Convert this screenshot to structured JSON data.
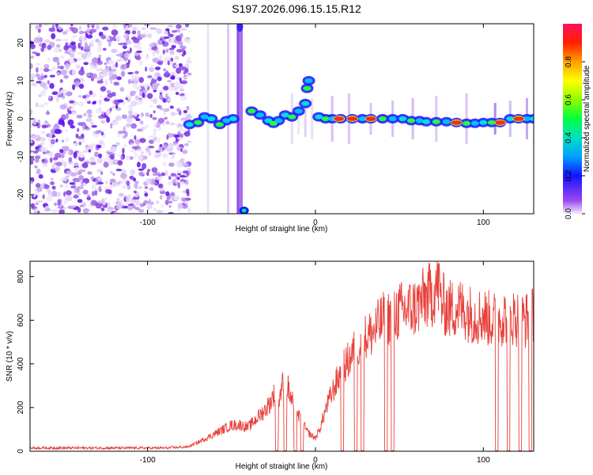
{
  "title": "S197.2026.096.15.15.R12",
  "chart_data": [
    {
      "type": "heatmap",
      "name": "spectrogram",
      "xlabel": "Height of straight line (km)",
      "ylabel": "Frequency (Hz)",
      "xlim": [
        -170,
        130
      ],
      "ylim": [
        -25,
        25
      ],
      "xticks": [
        -100,
        0,
        100
      ],
      "xtick_labels": [
        "-100",
        "0",
        "100"
      ],
      "yticks": [
        -20,
        -10,
        0,
        10,
        20
      ],
      "ytick_labels": [
        "-20",
        "-10",
        "0",
        "10",
        "20"
      ],
      "noise_region": [
        -170,
        -75
      ],
      "signal_track": [
        {
          "x": -75,
          "y": -1.5
        },
        {
          "x": -70,
          "y": -1
        },
        {
          "x": -66,
          "y": 0.5
        },
        {
          "x": -62,
          "y": 0
        },
        {
          "x": -57,
          "y": -1.5
        },
        {
          "x": -53,
          "y": -0.5
        },
        {
          "x": -49,
          "y": 0
        },
        {
          "x": -38,
          "y": 2
        },
        {
          "x": -33,
          "y": 1
        },
        {
          "x": -28,
          "y": -0.5
        },
        {
          "x": -25,
          "y": -1.2
        },
        {
          "x": -22,
          "y": -0.5
        },
        {
          "x": -18,
          "y": 1
        },
        {
          "x": -14,
          "y": 0.5
        },
        {
          "x": -10,
          "y": 2
        },
        {
          "x": -6,
          "y": 4
        },
        {
          "x": -5,
          "y": 8
        },
        {
          "x": -4,
          "y": 10
        },
        {
          "x": 2,
          "y": 0.5
        },
        {
          "x": 6,
          "y": 0
        },
        {
          "x": 10,
          "y": 0
        },
        {
          "x": 15,
          "y": 0
        },
        {
          "x": 22,
          "y": 0
        },
        {
          "x": 28,
          "y": 0
        },
        {
          "x": 33,
          "y": 0
        },
        {
          "x": 40,
          "y": 0
        },
        {
          "x": 46,
          "y": 0
        },
        {
          "x": 52,
          "y": 0
        },
        {
          "x": 57,
          "y": -0.5
        },
        {
          "x": 62,
          "y": -0.5
        },
        {
          "x": 66,
          "y": -0.8
        },
        {
          "x": 72,
          "y": -0.8
        },
        {
          "x": 78,
          "y": -0.8
        },
        {
          "x": 84,
          "y": -1
        },
        {
          "x": 90,
          "y": -1.2
        },
        {
          "x": 95,
          "y": -1.2
        },
        {
          "x": 100,
          "y": -1
        },
        {
          "x": 105,
          "y": -1
        },
        {
          "x": 110,
          "y": -1
        },
        {
          "x": 116,
          "y": 0
        },
        {
          "x": 121,
          "y": 0
        },
        {
          "x": 126,
          "y": 0
        },
        {
          "x": 130,
          "y": 0
        }
      ]
    },
    {
      "type": "colorbar",
      "label": "Normalized spectral amplitude",
      "range": [
        0,
        1
      ],
      "ticks": [
        0.0,
        0.2,
        0.4,
        0.6,
        0.8
      ],
      "tick_labels": [
        "0.0",
        "0.2",
        "0.4",
        "0.6",
        "0.8"
      ]
    },
    {
      "type": "line",
      "name": "snr",
      "xlabel": "Height of straight line (km)",
      "ylabel": "SNR (10 * v/v)",
      "xlim": [
        -170,
        130
      ],
      "ylim": [
        0,
        870
      ],
      "xticks": [
        -100,
        0,
        100
      ],
      "xtick_labels": [
        "-100",
        "0",
        "100"
      ],
      "yticks": [
        0,
        200,
        400,
        600,
        800
      ],
      "ytick_labels": [
        "0",
        "200",
        "400",
        "600",
        "800"
      ],
      "color": "#e8403a",
      "series": [
        {
          "name": "SNR",
          "x": [
            -170,
            -150,
            -130,
            -110,
            -90,
            -76,
            -70,
            -65,
            -60,
            -55,
            -50,
            -45,
            -40,
            -35,
            -30,
            -27,
            -25,
            -22,
            -20,
            -17,
            -15,
            -12,
            -10,
            -7,
            -5,
            -2,
            0,
            3,
            6,
            10,
            15,
            20,
            25,
            30,
            35,
            40,
            45,
            50,
            55,
            60,
            65,
            70,
            73,
            75,
            80,
            85,
            90,
            95,
            100,
            105,
            110,
            115,
            120,
            125,
            130
          ],
          "values": [
            15,
            15,
            15,
            15,
            15,
            20,
            40,
            60,
            80,
            100,
            120,
            120,
            110,
            150,
            190,
            220,
            260,
            220,
            300,
            310,
            250,
            200,
            160,
            120,
            90,
            70,
            60,
            110,
            190,
            270,
            360,
            420,
            480,
            520,
            550,
            600,
            620,
            640,
            650,
            660,
            700,
            720,
            780,
            680,
            650,
            660,
            640,
            620,
            620,
            600,
            610,
            620,
            610,
            600,
            620
          ]
        }
      ],
      "dropouts": [
        -23,
        -18,
        -12,
        -8,
        16,
        24,
        28,
        42,
        46,
        108,
        115,
        122,
        128
      ]
    }
  ]
}
